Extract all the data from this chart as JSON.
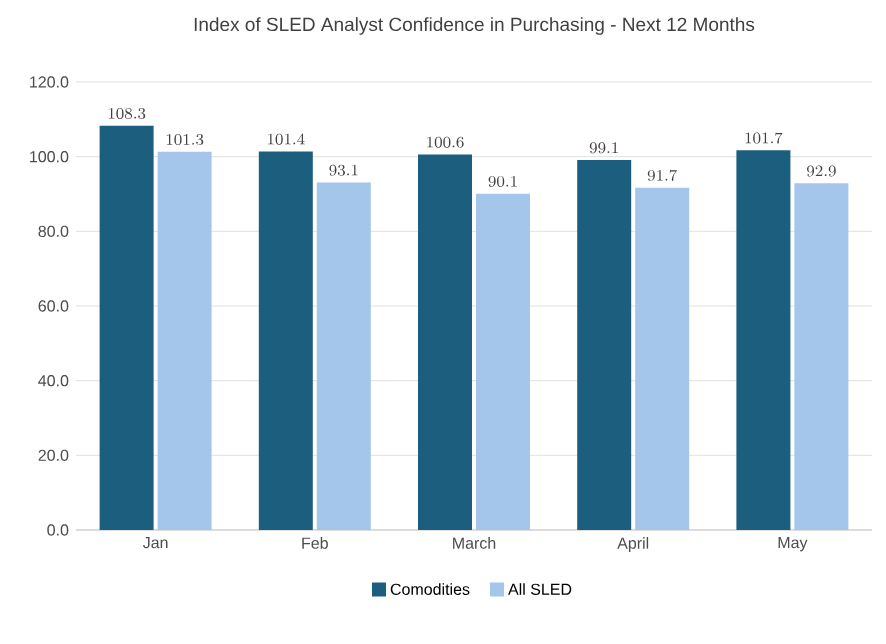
{
  "chart_data": {
    "type": "bar",
    "title": "Index of SLED Analyst Confidence in Purchasing - Next 12 Months",
    "categories": [
      "Jan",
      "Feb",
      "March",
      "April",
      "May"
    ],
    "series": [
      {
        "name": "Comodities",
        "color": "#1b5e7e",
        "values": [
          108.3,
          101.4,
          100.6,
          99.1,
          101.7
        ]
      },
      {
        "name": "All SLED",
        "color": "#a3c6ea",
        "values": [
          101.3,
          93.1,
          90.1,
          91.7,
          92.9
        ]
      }
    ],
    "ylim": [
      0,
      120
    ],
    "yticks": [
      {
        "value": 0,
        "label": "0.0"
      },
      {
        "value": 20,
        "label": "20.0"
      },
      {
        "value": 40,
        "label": "40.0"
      },
      {
        "value": 60,
        "label": "60.0"
      },
      {
        "value": 80,
        "label": "80.0"
      },
      {
        "value": 100,
        "label": "100.0"
      },
      {
        "value": 120,
        "label": "120.0"
      }
    ],
    "grid": "y",
    "legend": "bottom",
    "data_labels": true
  }
}
